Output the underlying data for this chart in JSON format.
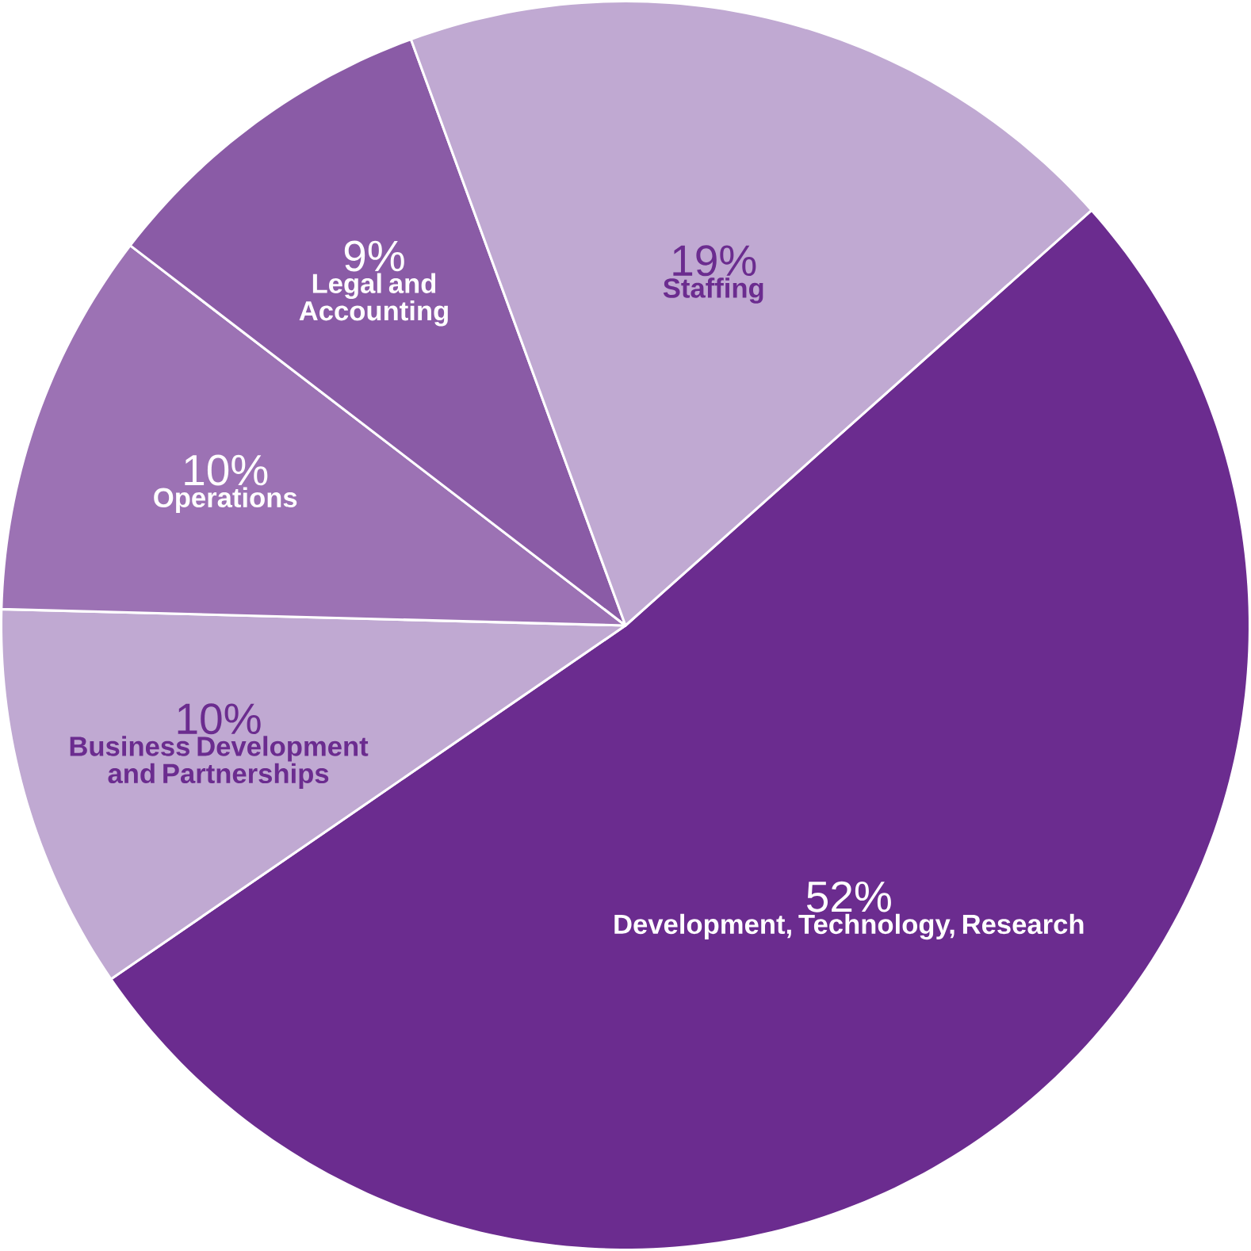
{
  "chart_data": {
    "type": "pie",
    "categories": [
      "Development, Technology, Research",
      "Business Development and Partnerships",
      "Operations",
      "Legal and Accounting",
      "Staffing"
    ],
    "values": [
      52,
      10,
      10,
      9,
      19
    ],
    "value_labels": [
      "52%",
      "10%",
      "10%",
      "9%",
      "19%"
    ],
    "colors": [
      "#6b2c8f",
      "#c0a9d2",
      "#9c72b4",
      "#8a5ba6",
      "#c0a9d2"
    ]
  }
}
